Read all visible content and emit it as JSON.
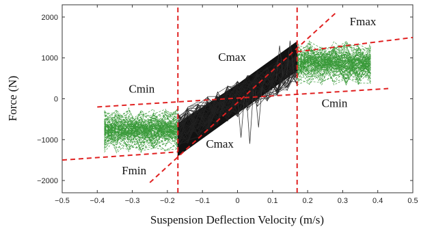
{
  "chart_data": {
    "type": "scatter",
    "title": "",
    "xlabel": "Suspension Deflection Velocity (m/s)",
    "ylabel": "Force (N)",
    "xlim": [
      -0.5,
      0.5
    ],
    "ylim": [
      -2300,
      2300
    ],
    "xticks": [
      -0.5,
      -0.4,
      -0.3,
      -0.2,
      -0.1,
      0,
      0.1,
      0.2,
      0.3,
      0.4,
      0.5
    ],
    "xtick_labels": [
      "−0.5",
      "−0.4",
      "−0.3",
      "−0.2",
      "−0.1",
      "0",
      "0.1",
      "0.2",
      "0.3",
      "0.4",
      "0.5"
    ],
    "yticks": [
      -2000,
      -1000,
      0,
      1000,
      2000
    ],
    "ytick_labels": [
      "−2000",
      "−1000",
      "0",
      "1000",
      "2000"
    ],
    "grid": false,
    "colors": {
      "green": "#3a9a3a",
      "black": "#111111",
      "red": "#e02020"
    },
    "series": [
      {
        "color": "#3a9a3a",
        "x_range": [
          -0.38,
          -0.17
        ],
        "y_range": [
          -1350,
          -200
        ]
      },
      {
        "color": "#3a9a3a",
        "x_range": [
          0.17,
          0.38
        ],
        "y_range": [
          300,
          1450
        ]
      },
      {
        "color": "#111111",
        "x_range": [
          -0.17,
          0.17
        ],
        "y_range": [
          -1400,
          1400
        ]
      }
    ],
    "reference_lines": [
      {
        "label": "Fmax",
        "x": [
          0.17,
          0.5
        ],
        "y": [
          1150,
          1500
        ]
      },
      {
        "label": "Fmin",
        "x": [
          -0.5,
          -0.17
        ],
        "y": [
          -1500,
          -1300
        ]
      },
      {
        "label": "Cmin",
        "x": [
          -0.4,
          0.43
        ],
        "y": [
          -200,
          250
        ]
      },
      {
        "label": "Cmax",
        "x": [
          -0.25,
          0.28
        ],
        "y": [
          -2050,
          2100
        ]
      },
      {
        "label": "",
        "x": [
          -0.17,
          -0.17
        ],
        "y": [
          -2300,
          2300
        ]
      },
      {
        "label": "",
        "x": [
          0.17,
          0.17
        ],
        "y": [
          -2300,
          2300
        ]
      }
    ],
    "annotations": [
      {
        "text": "Fmax",
        "x": 0.32,
        "y": 1800
      },
      {
        "text": "Cmax",
        "x": -0.055,
        "y": 930
      },
      {
        "text": "Cmin",
        "x": -0.31,
        "y": 150
      },
      {
        "text": "Cmin",
        "x": 0.24,
        "y": -200
      },
      {
        "text": "Cmax",
        "x": -0.09,
        "y": -1200
      },
      {
        "text": "Fmin",
        "x": -0.33,
        "y": -1850
      }
    ]
  }
}
